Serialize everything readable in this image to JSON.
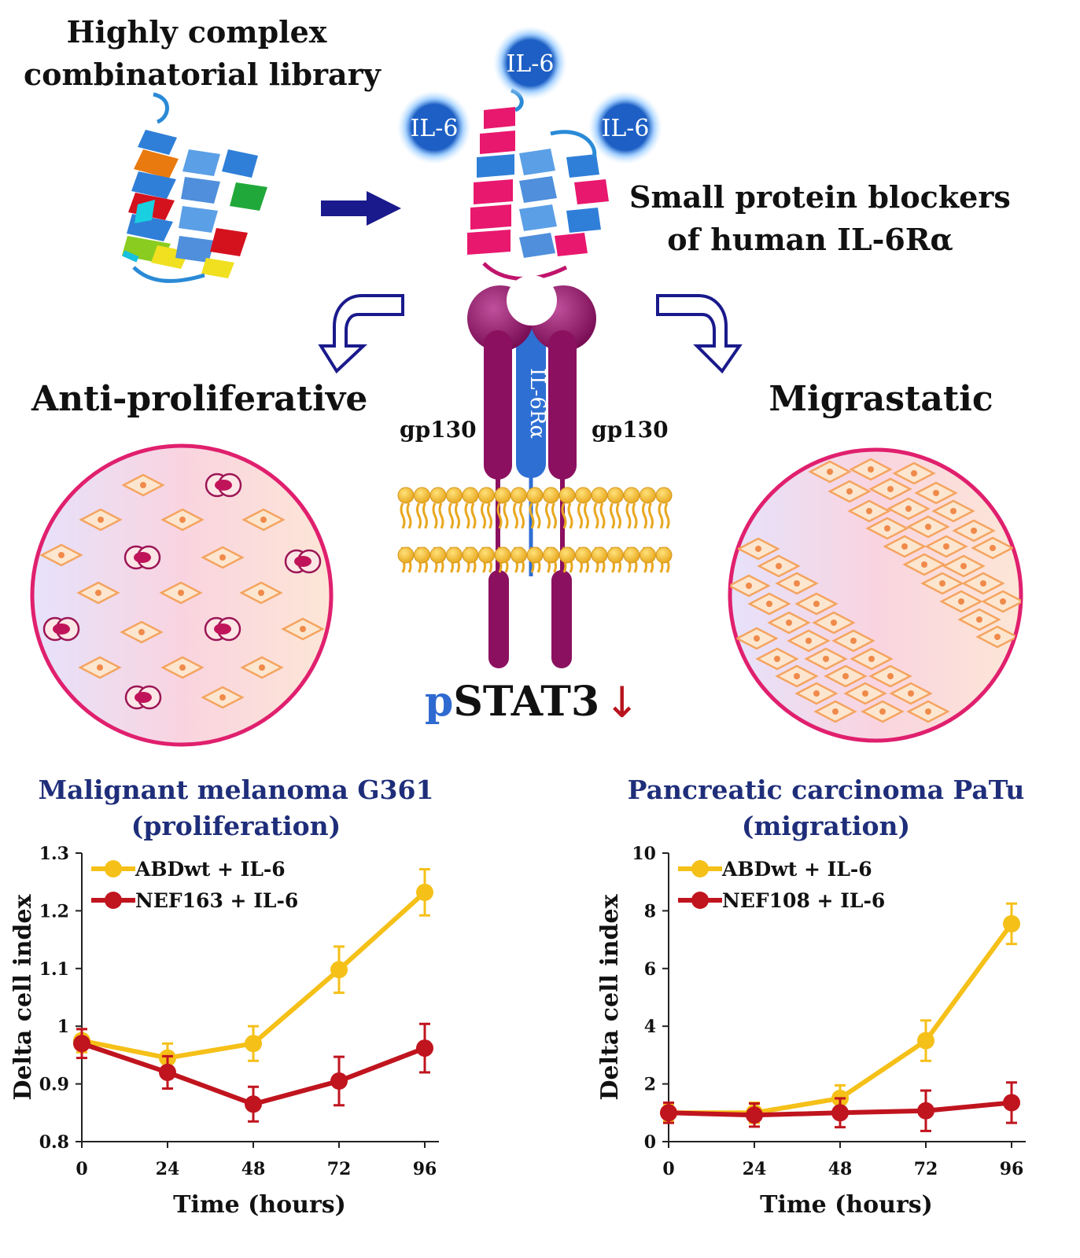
{
  "header": {
    "library_title_line1": "Highly complex",
    "library_title_line2": "combinatorial library",
    "blockers_title_line1": "Small protein blockers",
    "blockers_title_line2": "of  human IL-6Rα"
  },
  "ligand_label": "IL-6",
  "receptor": {
    "gp130_left": "gp130",
    "gp130_right": "gp130",
    "il6r_label": "IL-6Rα",
    "pstat_prefix": "p",
    "pstat_rest": "STAT3",
    "down_arrow": "↓"
  },
  "effects": {
    "left": "Anti-proliferative",
    "right": "Migrastatic"
  },
  "colors": {
    "navy": "#1a1a8c",
    "receptor_purple": "#8b1060",
    "il6r_blue": "#2e6fd4",
    "ligand_blue": "#1d5fc4",
    "yellow_series": "#f5c018",
    "red_series": "#c0141e",
    "dish_border": "#e0206e",
    "chart_title": "#1f2e7a"
  },
  "chart_data": [
    {
      "type": "line",
      "title_line1": "Malignant melanoma G361",
      "title_line2": "(proliferation)",
      "xlabel": "Time (hours)",
      "ylabel": "Delta cell index",
      "x": [
        0,
        24,
        48,
        72,
        96
      ],
      "xticks": [
        "0",
        "24",
        "48",
        "72",
        "96"
      ],
      "yticks": [
        "0.8",
        "0.9",
        "1",
        "1.1",
        "1.2",
        "1.3"
      ],
      "ylim": [
        0.8,
        1.3
      ],
      "grid": false,
      "legend": "top-left",
      "series": [
        {
          "name": "ABDwt + IL-6",
          "color": "#f5c018",
          "values": [
            0.975,
            0.945,
            0.97,
            1.098,
            1.232
          ],
          "err": [
            0.02,
            0.025,
            0.03,
            0.04,
            0.04
          ]
        },
        {
          "name": "NEF163 + IL-6",
          "color": "#c0141e",
          "values": [
            0.97,
            0.92,
            0.865,
            0.905,
            0.962
          ],
          "err": [
            0.025,
            0.028,
            0.03,
            0.042,
            0.042
          ]
        }
      ]
    },
    {
      "type": "line",
      "title_line1": "Pancreatic carcinoma PaTu",
      "title_line2": "(migration)",
      "xlabel": "Time (hours)",
      "ylabel": "Delta cell index",
      "x": [
        0,
        24,
        48,
        72,
        96
      ],
      "xticks": [
        "0",
        "24",
        "48",
        "72",
        "96"
      ],
      "yticks": [
        "0",
        "2",
        "4",
        "6",
        "8",
        "10"
      ],
      "ylim": [
        0,
        10
      ],
      "grid": false,
      "legend": "top-left",
      "series": [
        {
          "name": "ABDwt + IL-6",
          "color": "#f5c018",
          "values": [
            1.0,
            1.0,
            1.5,
            3.5,
            7.55
          ],
          "err": [
            0.3,
            0.35,
            0.45,
            0.7,
            0.7
          ]
        },
        {
          "name": "NEF108 + IL-6",
          "color": "#c0141e",
          "values": [
            1.0,
            0.92,
            1.0,
            1.07,
            1.35
          ],
          "err": [
            0.35,
            0.4,
            0.5,
            0.7,
            0.7
          ]
        }
      ]
    }
  ]
}
